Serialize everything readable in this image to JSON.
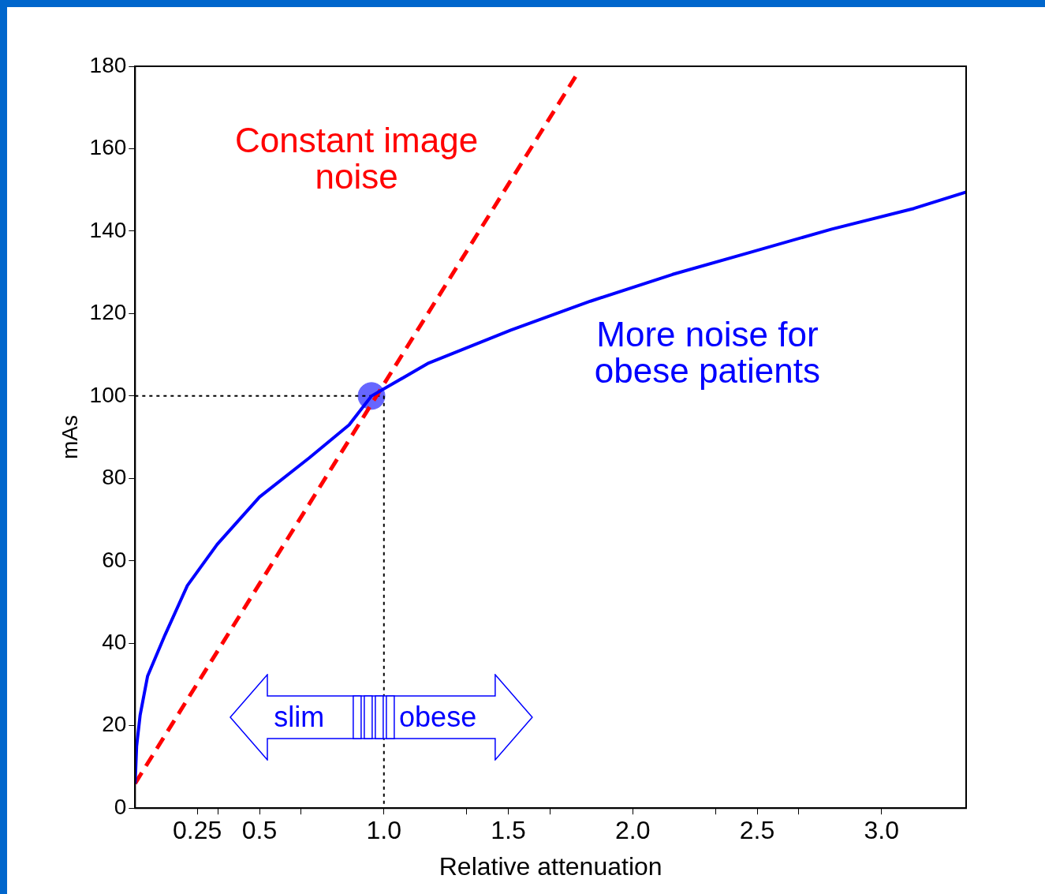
{
  "chart_data": {
    "type": "line",
    "xlabel": "Relative attenuation",
    "ylabel": "mAs",
    "xlim": [
      0,
      3.34
    ],
    "ylim": [
      0,
      180
    ],
    "xticks": [
      {
        "value": 0.25,
        "label": "0.25"
      },
      {
        "value": 0.333,
        "label": null
      },
      {
        "value": 0.5,
        "label": "0.5"
      },
      {
        "value": 0.667,
        "label": null
      },
      {
        "value": 1.0,
        "label": "1.0"
      },
      {
        "value": 1.333,
        "label": null
      },
      {
        "value": 1.5,
        "label": "1.5"
      },
      {
        "value": 1.667,
        "label": null
      },
      {
        "value": 2.0,
        "label": "2.0"
      },
      {
        "value": 2.333,
        "label": null
      },
      {
        "value": 2.5,
        "label": "2.5"
      },
      {
        "value": 2.667,
        "label": null
      },
      {
        "value": 3.0,
        "label": "3.0"
      }
    ],
    "yticks": [
      0,
      20,
      40,
      60,
      80,
      100,
      120,
      140,
      160,
      180
    ],
    "grid": false,
    "legend": false,
    "marker": "none",
    "series": [
      {
        "type": "line",
        "color": "#0000ff",
        "line_style": "solid",
        "x": [
          0,
          0.006,
          0.02,
          0.05,
          0.12,
          0.21,
          0.33,
          0.5,
          0.7,
          0.86,
          0.95,
          1.18,
          1.51,
          1.83,
          2.16,
          2.48,
          2.8,
          3.13,
          3.34
        ],
        "values": [
          6,
          15,
          22.5,
          32,
          42,
          54,
          64,
          75.5,
          85,
          93,
          100,
          108,
          116,
          123,
          129.5,
          135,
          140.5,
          145.5,
          149.5
        ]
      },
      {
        "type": "line",
        "color": "#ff0000",
        "line_style": "dashed",
        "x": [
          0,
          1.77
        ],
        "values": [
          6,
          177.5
        ]
      },
      {
        "type": "line",
        "color": "#000000",
        "line_style": "dotted",
        "x": [
          0,
          1.0
        ],
        "values": [
          100,
          100
        ]
      },
      {
        "type": "line",
        "color": "#000000",
        "line_style": "dotted",
        "x": [
          1.0,
          1.0
        ],
        "values": [
          100,
          0
        ]
      },
      {
        "type": "scatter",
        "color": "#6666ff",
        "marker": "circle",
        "x": [
          0.95
        ],
        "values": [
          100
        ]
      }
    ],
    "annotations": [
      "Constant image noise",
      "More noise for obese patients",
      "slim",
      "obese"
    ]
  }
}
